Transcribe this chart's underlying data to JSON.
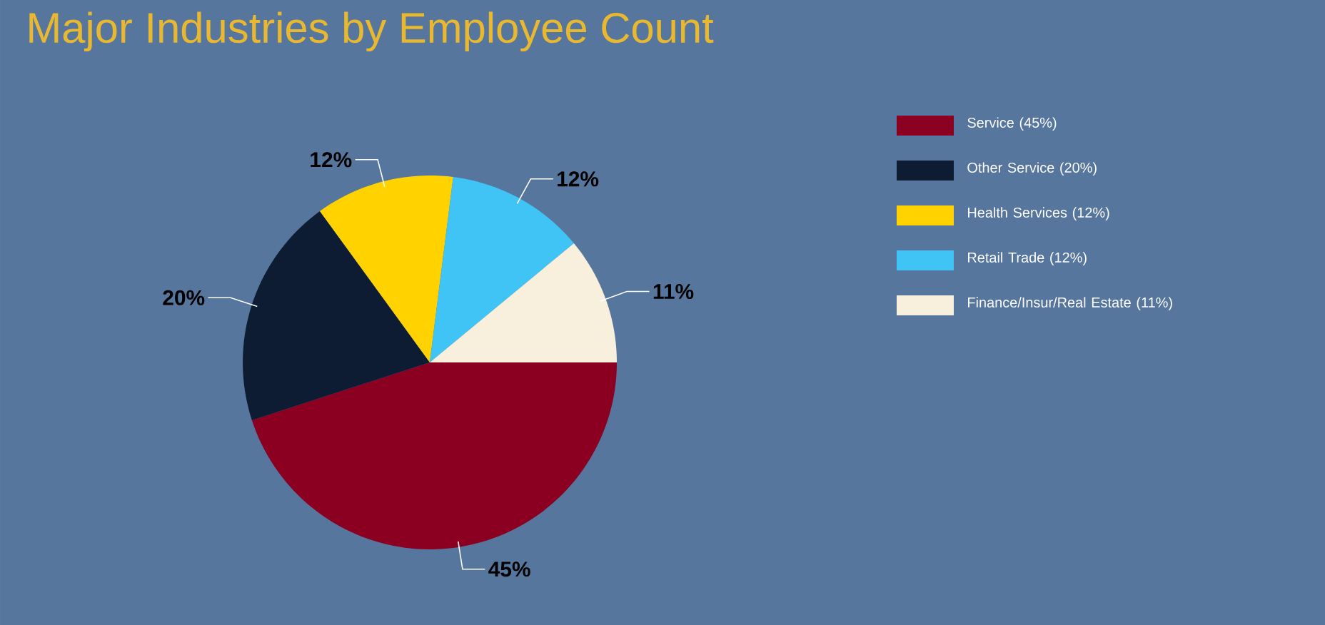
{
  "chart_data": {
    "type": "pie",
    "title": "Major Industries by Employee Count",
    "categories": [
      "Service (45%)",
      "Other Service (20%)",
      "Health Services (12%)",
      "Retail Trade (12%)",
      "Finance/Insur/Real Estate (11%)"
    ],
    "values": [
      45,
      20,
      12,
      12,
      11
    ],
    "colors": [
      "#8b0020",
      "#0d1b33",
      "#ffd200",
      "#3fc4f5",
      "#f8f0dc"
    ],
    "value_labels": [
      "45%",
      "20%",
      "12%",
      "12%",
      "11%"
    ],
    "legend": "right"
  }
}
